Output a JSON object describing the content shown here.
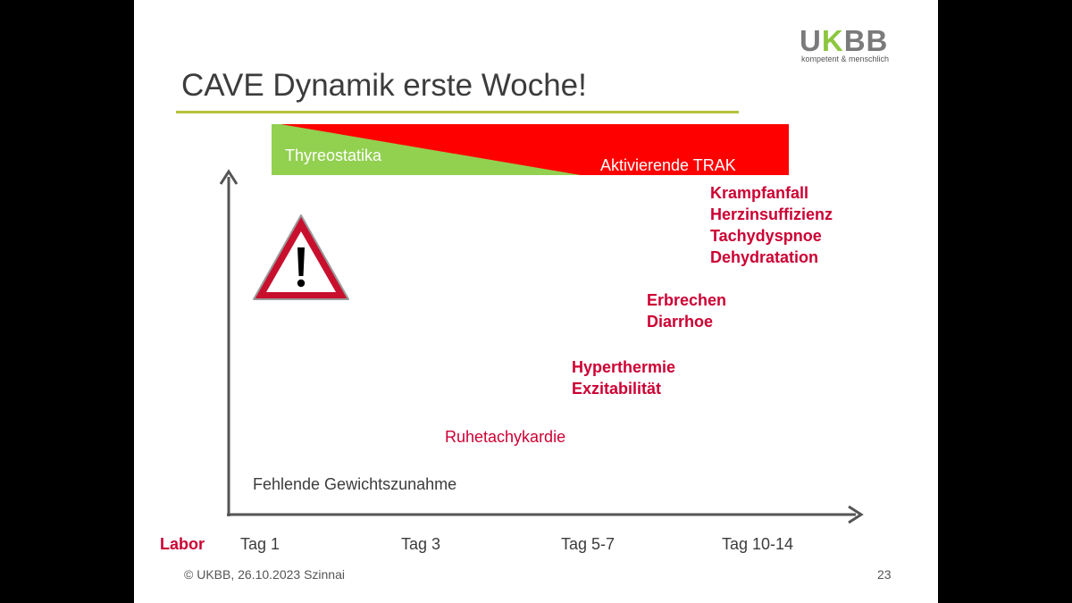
{
  "logo": {
    "brand_u": "U",
    "brand_k": "K",
    "brand_bb": "BB",
    "tagline": "kompetent & menschlich"
  },
  "title": "CAVE Dynamik erste Woche!",
  "bar": {
    "left_label": "Thyreostatika",
    "right_label": "Aktivierende TRAK"
  },
  "symptom_groups": [
    {
      "items": [
        "Krampfanfall",
        "Herzinsuffizienz",
        "Tachydyspnoe",
        "Dehydratation"
      ]
    },
    {
      "items": [
        "Erbrechen",
        "Diarrhoe"
      ]
    },
    {
      "items": [
        "Hyperthermie",
        "Exzitabilität"
      ]
    },
    {
      "items": [
        "Ruhetachykardie"
      ]
    }
  ],
  "baseline_text": "Fehlende Gewichtszunahme",
  "x_axis": {
    "row_label": "Labor",
    "ticks": [
      "Tag 1",
      "Tag 3",
      "Tag 5-7",
      "Tag 10-14"
    ]
  },
  "footer": {
    "copyright": "© UKBB, 26.10.2023 Szinnai",
    "page": "23"
  },
  "colors": {
    "red": "#cc0033",
    "green": "#92d050",
    "bar_red": "#ff0000",
    "olive_line": "#b5c23a"
  }
}
